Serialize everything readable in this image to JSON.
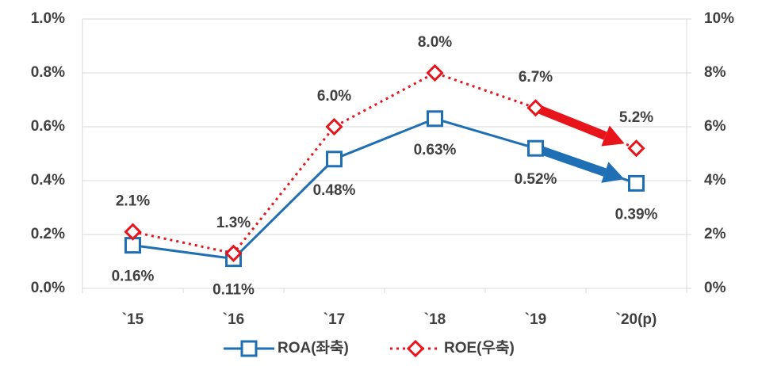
{
  "chart_data": {
    "type": "line",
    "categories": [
      "`15",
      "`16",
      "`17",
      "`18",
      "`19",
      "`20(p)"
    ],
    "series": [
      {
        "name": "ROA(좌축)",
        "color": "#1f6fb5",
        "values": [
          0.16,
          0.11,
          0.48,
          0.63,
          0.52,
          0.39
        ],
        "value_labels": [
          "0.16%",
          "0.11%",
          "0.48%",
          "0.63%",
          "0.52%",
          "0.39%"
        ]
      },
      {
        "name": "ROE(우축)",
        "color": "#e8141b",
        "axis": "y2",
        "values": [
          2.1,
          1.3,
          6.0,
          8.0,
          6.7,
          5.2
        ],
        "value_labels": [
          "2.1%",
          "1.3%",
          "6.0%",
          "8.0%",
          "6.7%",
          "5.2%"
        ]
      }
    ],
    "ylim": [
      0,
      1.0
    ],
    "yticks": [
      {
        "value": 0,
        "label": "0.0%"
      },
      {
        "value": 0.2,
        "label": "0.2%"
      },
      {
        "value": 0.4,
        "label": "0.4%"
      },
      {
        "value": 0.6,
        "label": "0.6%"
      },
      {
        "value": 0.8,
        "label": "0.8%"
      },
      {
        "value": 1.0,
        "label": "1.0%"
      }
    ],
    "y2lim": [
      0,
      10
    ],
    "y2ticks": [
      {
        "value": 0,
        "label": "0%"
      },
      {
        "value": 2,
        "label": "2%"
      },
      {
        "value": 4,
        "label": "4%"
      },
      {
        "value": 6,
        "label": "6%"
      },
      {
        "value": 8,
        "label": "8%"
      },
      {
        "value": 10,
        "label": "10%"
      }
    ],
    "grid": true,
    "legend": "bottom"
  }
}
